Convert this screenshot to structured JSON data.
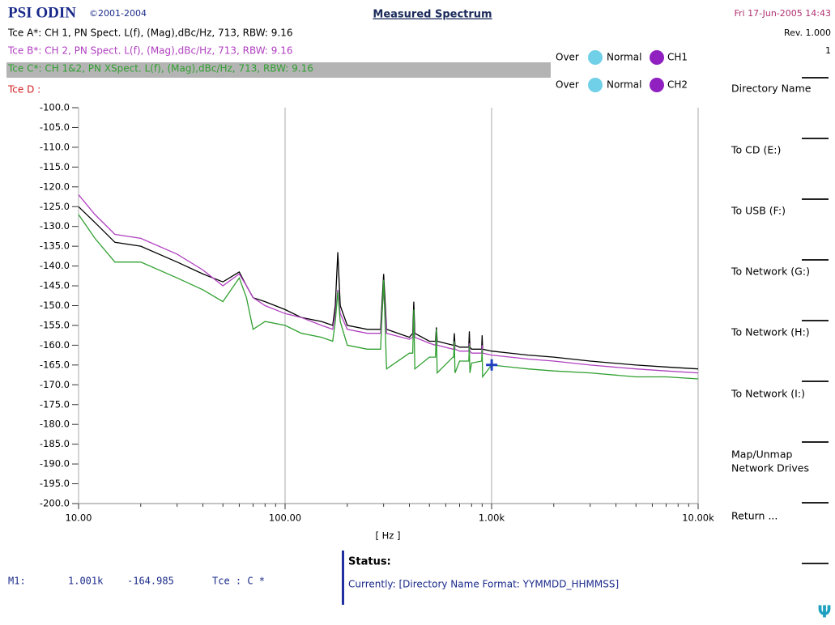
{
  "header": {
    "logo": "PSI ODIN",
    "copyright": "©2001-2004",
    "date": "Fri 17-Jun-2005 14:43",
    "revision": "Rev. 1.000",
    "page": "1"
  },
  "trace_d": "Tce D :",
  "legend": [
    {
      "over": "Over",
      "normal": "Normal",
      "channel": "CH1"
    },
    {
      "over": "Over",
      "normal": "Normal",
      "channel": "CH2"
    }
  ],
  "softkeys": [
    "Directory Name",
    "To CD (E:)",
    "To USB (F:)",
    "To Network (G:)",
    "To Network (H:)",
    "To Network (I:)",
    "Map/Unmap",
    "Network Drives",
    "Return ..."
  ],
  "status": {
    "title": "Status:",
    "text": "Currently: [Directory Name Format: YYMMDD_HHMMSS]"
  },
  "icon": "Ψ",
  "chart_data": {
    "type": "line",
    "title": "Measured Spectrum",
    "x_label": "[ Hz ]",
    "log_x": true,
    "xlim": [
      10,
      10000
    ],
    "xticks": [
      {
        "value": 10,
        "label": "10.00"
      },
      {
        "value": 100,
        "label": "100.00"
      },
      {
        "value": 1000,
        "label": "1.00k"
      },
      {
        "value": 10000,
        "label": "10.00k"
      }
    ],
    "xminorticks": [
      20,
      30,
      40,
      50,
      60,
      70,
      80,
      90,
      200,
      300,
      400,
      500,
      600,
      700,
      800,
      900,
      2000,
      3000,
      4000,
      5000,
      6000,
      7000,
      8000,
      9000
    ],
    "ylim": [
      -200,
      -100
    ],
    "yticks": [
      {
        "value": -100,
        "label": "-100.0"
      },
      {
        "value": -105,
        "label": "-105.0"
      },
      {
        "value": -110,
        "label": "-110.0"
      },
      {
        "value": -115,
        "label": "-115.0"
      },
      {
        "value": -120,
        "label": "-120.0"
      },
      {
        "value": -125,
        "label": "-125.0"
      },
      {
        "value": -130,
        "label": "-130.0"
      },
      {
        "value": -135,
        "label": "-135.0"
      },
      {
        "value": -140,
        "label": "-140.0"
      },
      {
        "value": -145,
        "label": "-145.0"
      },
      {
        "value": -150,
        "label": "-150.0"
      },
      {
        "value": -155,
        "label": "-155.0"
      },
      {
        "value": -160,
        "label": "-160.0"
      },
      {
        "value": -165,
        "label": "-165.0"
      },
      {
        "value": -170,
        "label": "-170.0"
      },
      {
        "value": -175,
        "label": "-175.0"
      },
      {
        "value": -180,
        "label": "-180.0"
      },
      {
        "value": -185,
        "label": "-185.0"
      },
      {
        "value": -190,
        "label": "-190.0"
      },
      {
        "value": -195,
        "label": "-195.0"
      },
      {
        "value": -200,
        "label": "-200.0"
      }
    ],
    "grid": true,
    "x": [
      10,
      12,
      15,
      20,
      30,
      40,
      50,
      60,
      65,
      70,
      80,
      100,
      120,
      150,
      170,
      175,
      180,
      185,
      200,
      250,
      290,
      300,
      310,
      400,
      415,
      420,
      425,
      500,
      535,
      540,
      545,
      650,
      655,
      660,
      665,
      700,
      775,
      780,
      785,
      800,
      895,
      900,
      905,
      1000,
      1500,
      2000,
      3000,
      5000,
      7000,
      10000
    ],
    "series": [
      {
        "name": "Tce A*: CH 1, PN Spect. L(f), (Mag),dBc/Hz, 713, RBW: 9.16",
        "color": "#000000",
        "values": [
          -125,
          -129,
          -134,
          -135,
          -139,
          -142,
          -144,
          -141.5,
          -145,
          -148,
          -149,
          -151,
          -153,
          -154,
          -155,
          -150,
          -136.5,
          -150,
          -155,
          -156,
          -156,
          -142,
          -156,
          -158,
          -157,
          -149,
          -157,
          -159,
          -159,
          -155.5,
          -159,
          -160,
          -160,
          -157,
          -160,
          -160.5,
          -160.5,
          -156.5,
          -160.5,
          -161,
          -161,
          -157.5,
          -161,
          -161.5,
          -162.5,
          -163,
          -164,
          -165,
          -165.5,
          -166
        ]
      },
      {
        "name": "Tce B*: CH 2, PN Spect. L(f), (Mag),dBc/Hz, 713, RBW: 9.16",
        "color": "#b040c0",
        "values": [
          -122,
          -127,
          -132,
          -133,
          -137,
          -141,
          -145,
          -142,
          -145,
          -148,
          -150,
          -152,
          -153,
          -155,
          -156,
          -152,
          -146,
          -152,
          -156,
          -157,
          -157,
          -146,
          -157,
          -158.5,
          -158,
          -153,
          -158,
          -159.5,
          -160,
          -158,
          -160,
          -161,
          -161,
          -159,
          -161,
          -161.5,
          -161.5,
          -159.5,
          -161.5,
          -162,
          -162,
          -160,
          -162,
          -162.5,
          -163.5,
          -164,
          -165,
          -166,
          -166.5,
          -167
        ]
      },
      {
        "name": "Tce C*: CH 1&2, PN XSpect. L(f), (Mag),dBc/Hz, 713, RBW: 9.16",
        "color": "#30a030",
        "values": [
          -127,
          -133,
          -139,
          -139,
          -143,
          -146,
          -149,
          -143,
          -148,
          -156,
          -154,
          -155,
          -157,
          -158,
          -159,
          -154,
          -146.5,
          -154,
          -160,
          -161,
          -161,
          -143.5,
          -166,
          -162,
          -162,
          -151,
          -166,
          -163,
          -163,
          -156,
          -167,
          -163,
          -163,
          -159,
          -167,
          -164,
          -164,
          -160,
          -167,
          -164.5,
          -164,
          -161,
          -168,
          -165,
          -166,
          -166.5,
          -167,
          -168,
          -168,
          -168.5
        ]
      }
    ],
    "marker": {
      "name": "M1:",
      "x": 1001,
      "x_label": "1.001k",
      "y": -164.985,
      "trace": "Tce : C *",
      "color": "#2040c0"
    }
  }
}
